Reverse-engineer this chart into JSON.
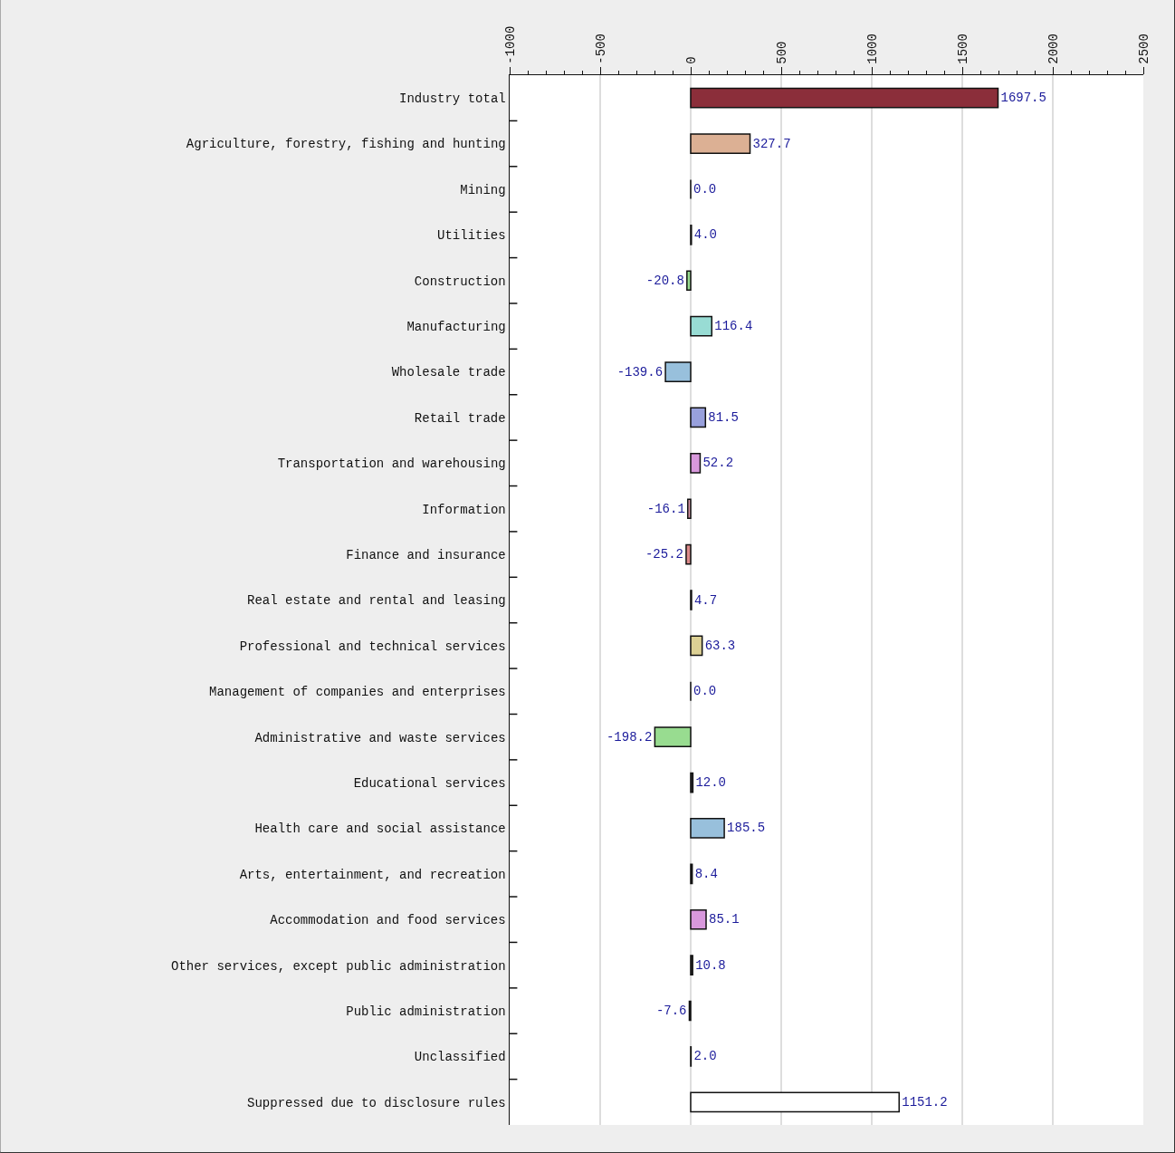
{
  "chart_data": {
    "type": "bar",
    "orientation": "horizontal",
    "categories": [
      "Industry total",
      "Agriculture, forestry, fishing and hunting",
      "Mining",
      "Utilities",
      "Construction",
      "Manufacturing",
      "Wholesale trade",
      "Retail trade",
      "Transportation and warehousing",
      "Information",
      "Finance and insurance",
      "Real estate and rental and leasing",
      "Professional and technical services",
      "Management of companies and enterprises",
      "Administrative and waste services",
      "Educational services",
      "Health care and social assistance",
      "Arts, entertainment, and recreation",
      "Accommodation and food services",
      "Other services, except public administration",
      "Public administration",
      "Unclassified",
      "Suppressed due to disclosure rules"
    ],
    "values": [
      1697.5,
      327.7,
      0.0,
      4.0,
      -20.8,
      116.4,
      -139.6,
      81.5,
      52.2,
      -16.1,
      -25.2,
      4.7,
      63.3,
      0.0,
      -198.2,
      12.0,
      185.5,
      8.4,
      85.1,
      10.8,
      -7.6,
      2.0,
      1151.2
    ],
    "value_labels": [
      "1697.5",
      "327.7",
      "0.0",
      "4.0",
      "-20.8",
      "116.4",
      "-139.6",
      "81.5",
      "52.2",
      "-16.1",
      "-25.2",
      "4.7",
      "63.3",
      "0.0",
      "-198.2",
      "12.0",
      "185.5",
      "8.4",
      "85.1",
      "10.8",
      "-7.6",
      "2.0",
      "1151.2"
    ],
    "colors": [
      "#8b2e3a",
      "#dcb094",
      "#111111",
      "#808080",
      "#98dc90",
      "#98dcd4",
      "#98c0dc",
      "#98a0dc",
      "#d898dc",
      "#dc98a8",
      "#dc8a8a",
      "#303030",
      "#dcd094",
      "#111111",
      "#98dc90",
      "#303030",
      "#98c0dc",
      "#303030",
      "#d898dc",
      "#303030",
      "#303030",
      "#808080",
      "#ffffff"
    ],
    "xlim": [
      -1000,
      2500
    ],
    "xticks": [
      -1000,
      -500,
      0,
      500,
      1000,
      1500,
      2000,
      2500
    ],
    "grid": "x"
  }
}
